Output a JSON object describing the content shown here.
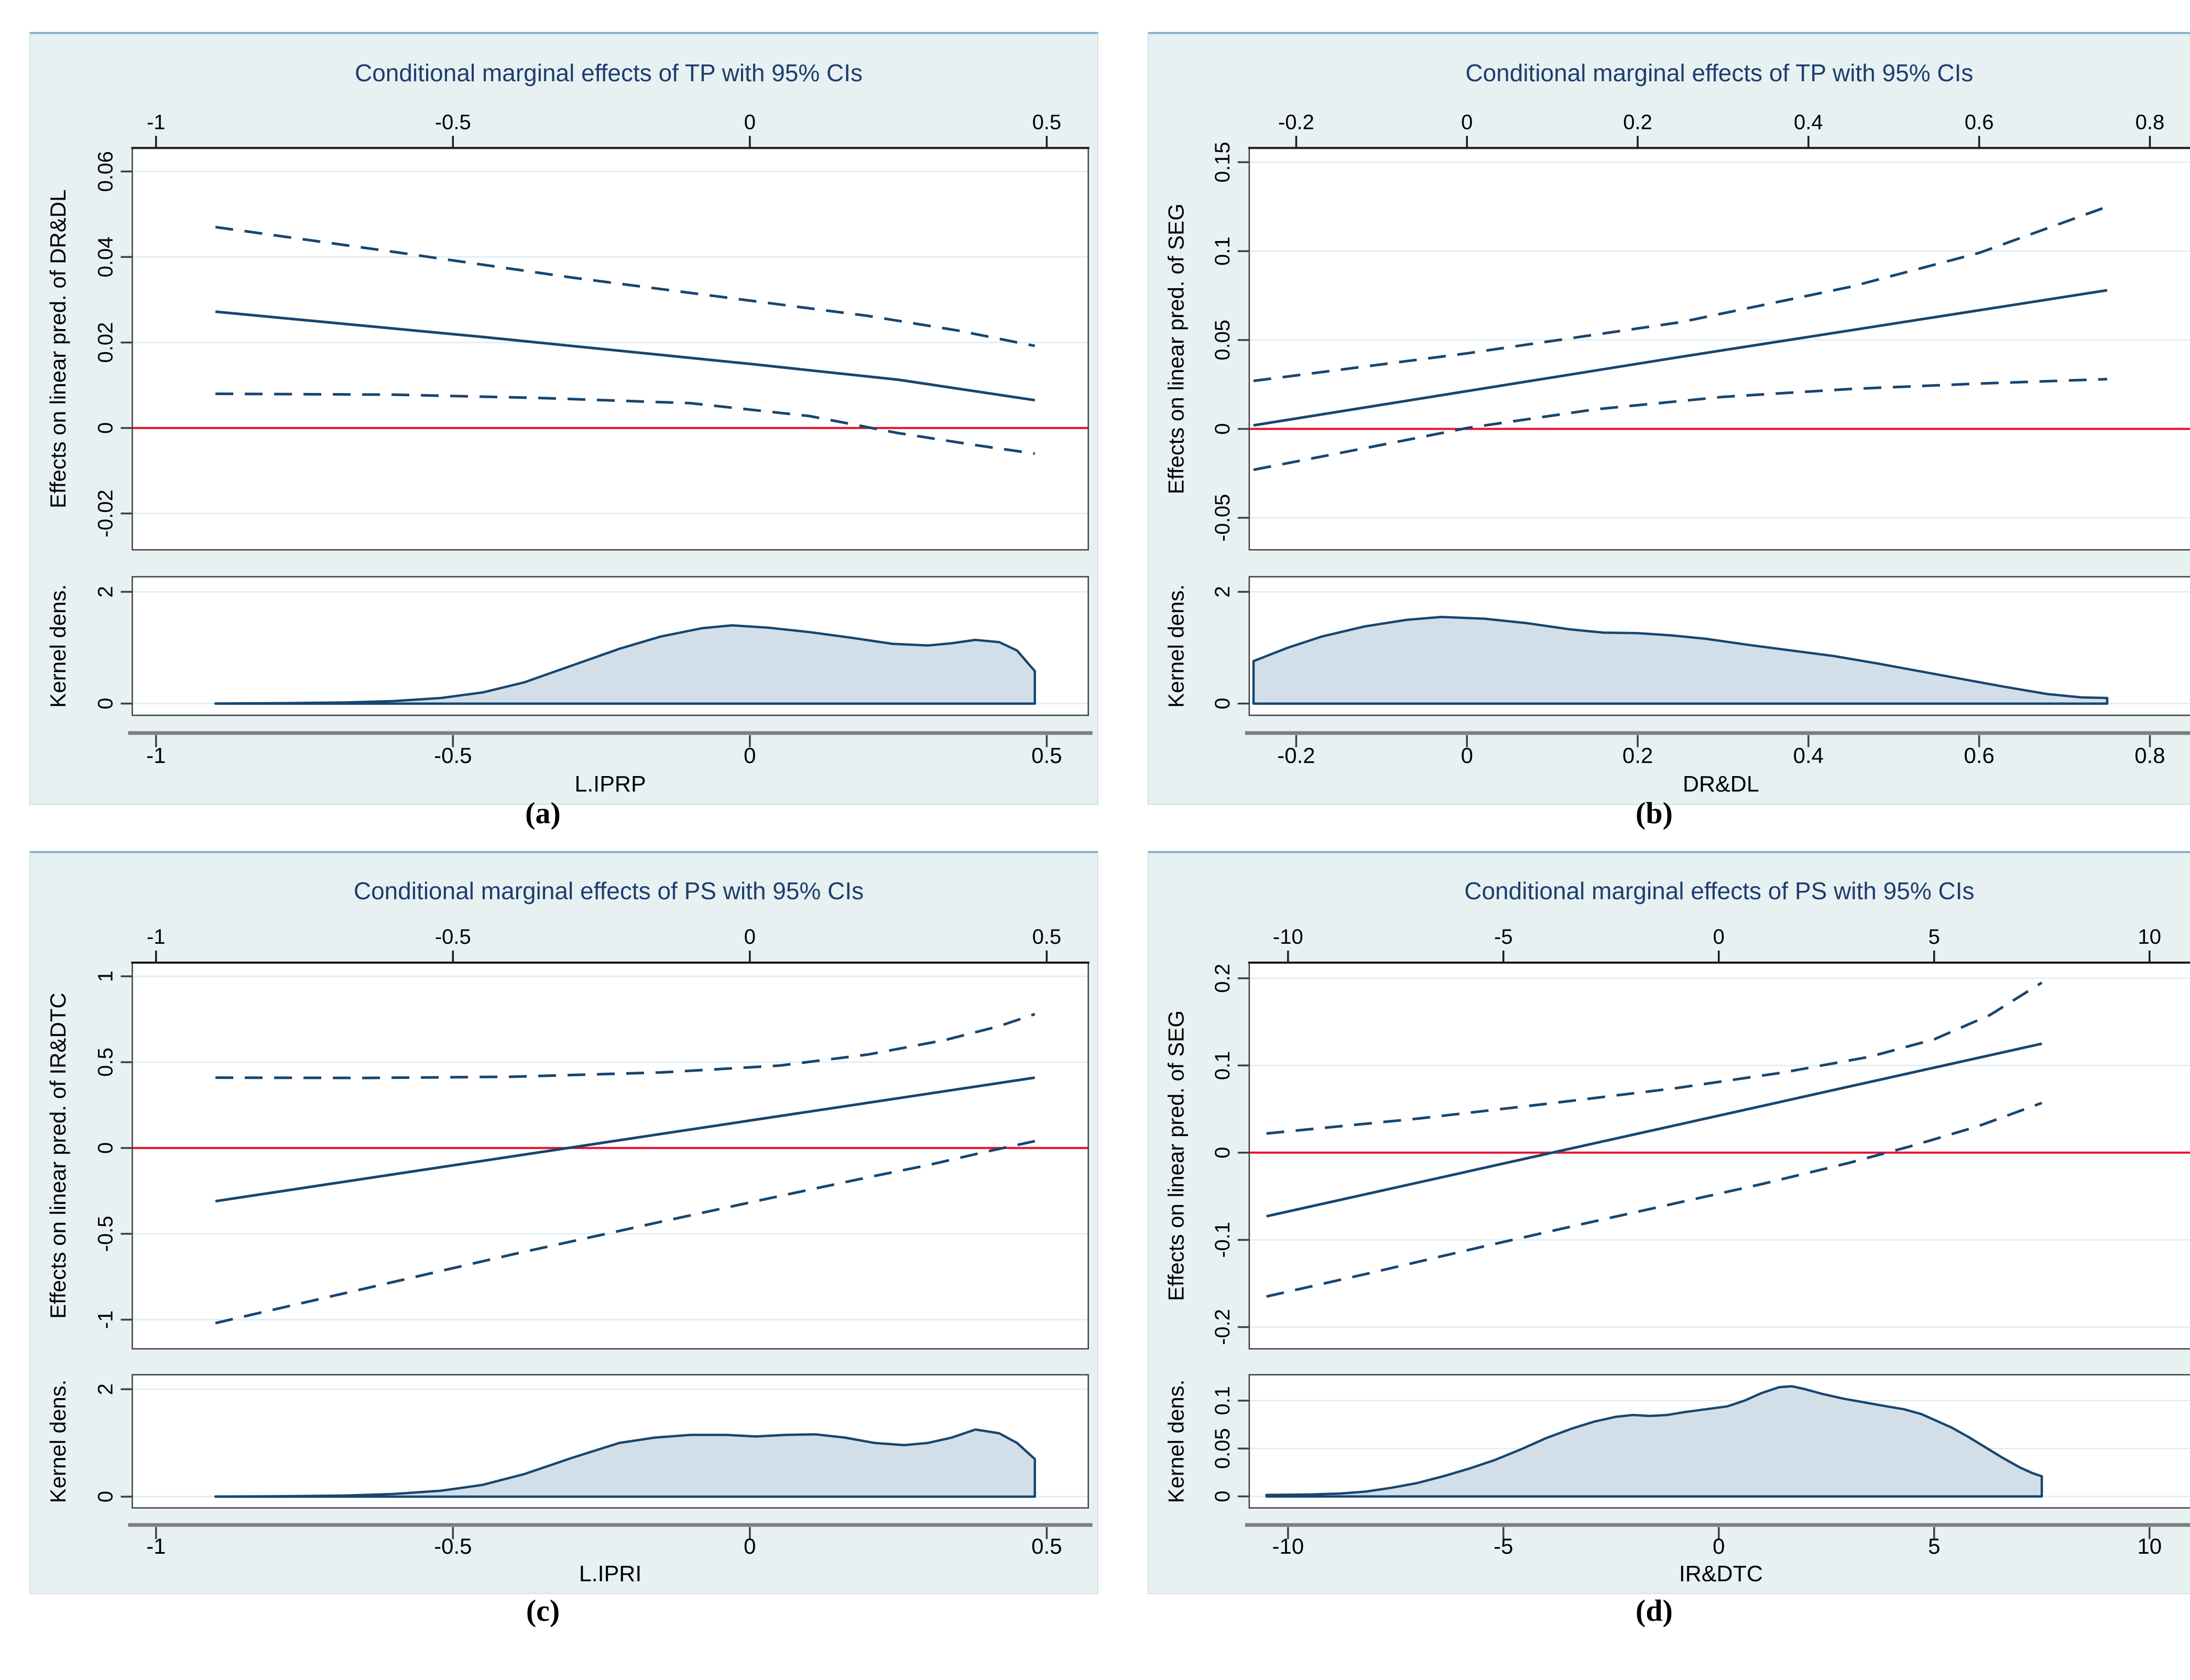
{
  "colors": {
    "panel_bg": "#e7f1f2",
    "panel_border": "#85b3cd",
    "plot_bg": "#ffffff",
    "grid": "#ddedf1",
    "axis": "#3f3f3f",
    "top_axis": "#1a1a1a",
    "scale_line": "#7e7e7e",
    "title_text": "#1e3d6e",
    "line": "#17466f",
    "zero_line": "#e8112d",
    "density_fill": "#d2dfe9",
    "density_stroke": "#17466f",
    "text": "#000000"
  },
  "chart_data": [
    {
      "id": "a",
      "type": "line",
      "label": "(a)",
      "title": "Conditional marginal effects of TP with 95% CIs",
      "xlabel": "L.IPRP",
      "ylabel": "Effects on linear pred. of DR&DL",
      "legend_position": "none",
      "grid": true,
      "xlim": [
        -1.04,
        0.57
      ],
      "xticks": [
        -1,
        -0.5,
        0,
        0.5
      ],
      "xtick_labels": [
        "-1",
        "-0.5",
        "0",
        "0.5"
      ],
      "ylim": [
        -0.0285,
        0.0655
      ],
      "yticks": [
        -0.02,
        0,
        0.02,
        0.04,
        0.06
      ],
      "ytick_labels": [
        "-0.02",
        "0",
        "0.02",
        "0.04",
        "0.06"
      ],
      "zero_line": 0,
      "series": [
        {
          "name": "ci-upper",
          "style": "dashed",
          "points": [
            [
              -0.9,
              0.047
            ],
            [
              -0.6,
              0.0412
            ],
            [
              -0.3,
              0.0352
            ],
            [
              0,
              0.0298
            ],
            [
              0.2,
              0.0262
            ],
            [
              0.35,
              0.0228
            ],
            [
              0.48,
              0.0192
            ]
          ]
        },
        {
          "name": "ci-lower",
          "style": "dashed",
          "points": [
            [
              -0.9,
              0.008
            ],
            [
              -0.6,
              0.0078
            ],
            [
              -0.35,
              0.007
            ],
            [
              -0.1,
              0.0058
            ],
            [
              0.1,
              0.0028
            ],
            [
              0.25,
              -0.0012
            ],
            [
              0.38,
              -0.004
            ],
            [
              0.48,
              -0.006
            ]
          ]
        },
        {
          "name": "marginal-effect",
          "style": "solid",
          "points": [
            [
              -0.9,
              0.0272
            ],
            [
              -0.45,
              0.0213
            ],
            [
              0,
              0.015
            ],
            [
              0.25,
              0.0113
            ],
            [
              0.48,
              0.0065
            ]
          ]
        }
      ],
      "density": {
        "ylabel": "Kernel dens.",
        "ylim": [
          -0.21,
          2.27
        ],
        "yticks": [
          0,
          2
        ],
        "ytick_labels": [
          "0",
          "2"
        ],
        "points": [
          [
            -0.9,
            0.002
          ],
          [
            -0.78,
            0.008
          ],
          [
            -0.68,
            0.02
          ],
          [
            -0.6,
            0.045
          ],
          [
            -0.52,
            0.1
          ],
          [
            -0.45,
            0.2
          ],
          [
            -0.38,
            0.38
          ],
          [
            -0.3,
            0.68
          ],
          [
            -0.22,
            0.98
          ],
          [
            -0.15,
            1.2
          ],
          [
            -0.08,
            1.35
          ],
          [
            -0.03,
            1.4
          ],
          [
            0.03,
            1.36
          ],
          [
            0.1,
            1.28
          ],
          [
            0.17,
            1.18
          ],
          [
            0.24,
            1.07
          ],
          [
            0.3,
            1.04
          ],
          [
            0.34,
            1.08
          ],
          [
            0.38,
            1.14
          ],
          [
            0.42,
            1.1
          ],
          [
            0.45,
            0.95
          ],
          [
            0.48,
            0.58
          ]
        ]
      }
    },
    {
      "id": "b",
      "type": "line",
      "label": "(b)",
      "title": "Conditional marginal effects of TP with 95% CIs",
      "xlabel": "DR&DL",
      "ylabel": "Effects on linear pred. of SEG",
      "legend_position": "none",
      "grid": true,
      "xlim": [
        -0.255,
        0.85
      ],
      "xticks": [
        -0.2,
        0,
        0.2,
        0.4,
        0.6,
        0.8
      ],
      "xtick_labels": [
        "-0.2",
        "0",
        "0.2",
        "0.4",
        "0.6",
        "0.8"
      ],
      "ylim": [
        -0.068,
        0.158
      ],
      "yticks": [
        -0.05,
        0,
        0.05,
        0.1,
        0.15
      ],
      "ytick_labels": [
        "-0.05",
        "0",
        "0.05",
        "0.1",
        "0.15"
      ],
      "zero_line": 0,
      "series": [
        {
          "name": "ci-upper",
          "style": "dashed",
          "points": [
            [
              -0.25,
              0.027
            ],
            [
              0,
              0.0425
            ],
            [
              0.25,
              0.06
            ],
            [
              0.45,
              0.08
            ],
            [
              0.6,
              0.099
            ],
            [
              0.75,
              0.125
            ]
          ]
        },
        {
          "name": "ci-lower",
          "style": "dashed",
          "points": [
            [
              -0.25,
              -0.023
            ],
            [
              -0.1,
              -0.009
            ],
            [
              0,
              0.0005
            ],
            [
              0.15,
              0.011
            ],
            [
              0.3,
              0.018
            ],
            [
              0.45,
              0.0225
            ],
            [
              0.6,
              0.0255
            ],
            [
              0.75,
              0.028
            ]
          ]
        },
        {
          "name": "marginal-effect",
          "style": "solid",
          "points": [
            [
              -0.25,
              0.002
            ],
            [
              0.25,
              0.0405
            ],
            [
              0.75,
              0.078
            ]
          ]
        }
      ],
      "density": {
        "ylabel": "Kernel dens.",
        "ylim": [
          -0.21,
          2.27
        ],
        "yticks": [
          0,
          2
        ],
        "ytick_labels": [
          "0",
          "2"
        ],
        "points": [
          [
            -0.25,
            0.76
          ],
          [
            -0.21,
            1.0
          ],
          [
            -0.17,
            1.2
          ],
          [
            -0.12,
            1.38
          ],
          [
            -0.07,
            1.5
          ],
          [
            -0.03,
            1.55
          ],
          [
            0.02,
            1.52
          ],
          [
            0.07,
            1.44
          ],
          [
            0.12,
            1.33
          ],
          [
            0.16,
            1.27
          ],
          [
            0.2,
            1.26
          ],
          [
            0.24,
            1.22
          ],
          [
            0.28,
            1.16
          ],
          [
            0.33,
            1.05
          ],
          [
            0.38,
            0.95
          ],
          [
            0.43,
            0.85
          ],
          [
            0.48,
            0.72
          ],
          [
            0.53,
            0.58
          ],
          [
            0.58,
            0.44
          ],
          [
            0.63,
            0.3
          ],
          [
            0.68,
            0.17
          ],
          [
            0.72,
            0.11
          ],
          [
            0.75,
            0.1
          ]
        ]
      }
    },
    {
      "id": "c",
      "type": "line",
      "label": "(c)",
      "title": "Conditional marginal effects of PS with 95% CIs",
      "xlabel": "L.IPRI",
      "ylabel": "Effects on linear pred. of IR&DTC",
      "legend_position": "none",
      "grid": true,
      "xlim": [
        -1.04,
        0.57
      ],
      "xticks": [
        -1,
        -0.5,
        0,
        0.5
      ],
      "xtick_labels": [
        "-1",
        "-0.5",
        "0",
        "0.5"
      ],
      "ylim": [
        -1.17,
        1.08
      ],
      "yticks": [
        -1,
        -0.5,
        0,
        0.5,
        1
      ],
      "ytick_labels": [
        "-1",
        "-0.5",
        "0",
        "0.5",
        "1"
      ],
      "zero_line": 0,
      "series": [
        {
          "name": "ci-upper",
          "style": "dashed",
          "points": [
            [
              -0.9,
              0.41
            ],
            [
              -0.65,
              0.408
            ],
            [
              -0.4,
              0.415
            ],
            [
              -0.15,
              0.44
            ],
            [
              0.05,
              0.48
            ],
            [
              0.2,
              0.545
            ],
            [
              0.33,
              0.63
            ],
            [
              0.42,
              0.71
            ],
            [
              0.48,
              0.78
            ]
          ]
        },
        {
          "name": "ci-lower",
          "style": "dashed",
          "points": [
            [
              -0.9,
              -1.02
            ],
            [
              -0.65,
              -0.82
            ],
            [
              -0.4,
              -0.62
            ],
            [
              -0.15,
              -0.43
            ],
            [
              0.05,
              -0.28
            ],
            [
              0.2,
              -0.17
            ],
            [
              0.3,
              -0.1
            ],
            [
              0.4,
              -0.02
            ],
            [
              0.48,
              0.04
            ]
          ]
        },
        {
          "name": "marginal-effect",
          "style": "solid",
          "points": [
            [
              -0.9,
              -0.31
            ],
            [
              -0.45,
              -0.075
            ],
            [
              0,
              0.16
            ],
            [
              0.48,
              0.41
            ]
          ]
        }
      ],
      "density": {
        "ylabel": "Kernel dens.",
        "ylim": [
          -0.21,
          2.27
        ],
        "yticks": [
          0,
          2
        ],
        "ytick_labels": [
          "0",
          "2"
        ],
        "points": [
          [
            -0.9,
            0.002
          ],
          [
            -0.78,
            0.008
          ],
          [
            -0.68,
            0.02
          ],
          [
            -0.6,
            0.05
          ],
          [
            -0.52,
            0.11
          ],
          [
            -0.45,
            0.22
          ],
          [
            -0.38,
            0.42
          ],
          [
            -0.3,
            0.72
          ],
          [
            -0.22,
            1.0
          ],
          [
            -0.16,
            1.1
          ],
          [
            -0.1,
            1.15
          ],
          [
            -0.04,
            1.15
          ],
          [
            0.01,
            1.12
          ],
          [
            0.06,
            1.15
          ],
          [
            0.11,
            1.16
          ],
          [
            0.16,
            1.1
          ],
          [
            0.21,
            1.0
          ],
          [
            0.26,
            0.96
          ],
          [
            0.3,
            1.0
          ],
          [
            0.34,
            1.1
          ],
          [
            0.38,
            1.25
          ],
          [
            0.42,
            1.18
          ],
          [
            0.45,
            1.0
          ],
          [
            0.48,
            0.7
          ]
        ]
      }
    },
    {
      "id": "d",
      "type": "line",
      "label": "(d)",
      "title": "Conditional marginal effects of PS with 95% CIs",
      "xlabel": "IR&DTC",
      "ylabel": "Effects on linear pred. of SEG",
      "legend_position": "none",
      "grid": true,
      "xlim": [
        -10.9,
        11
      ],
      "xticks": [
        -10,
        -5,
        0,
        5,
        10
      ],
      "xtick_labels": [
        "-10",
        "-5",
        "0",
        "5",
        "10"
      ],
      "ylim": [
        -0.225,
        0.218
      ],
      "yticks": [
        -0.2,
        -0.1,
        0,
        0.1,
        0.2
      ],
      "ytick_labels": [
        "-0.2",
        "-0.1",
        "0",
        "0.1",
        "0.2"
      ],
      "zero_line": 0,
      "series": [
        {
          "name": "ci-upper",
          "style": "dashed",
          "points": [
            [
              -10.5,
              0.022
            ],
            [
              -7,
              0.039
            ],
            [
              -4,
              0.056
            ],
            [
              -1,
              0.074
            ],
            [
              1.5,
              0.092
            ],
            [
              3.5,
              0.11
            ],
            [
              5,
              0.13
            ],
            [
              6.3,
              0.158
            ],
            [
              7.5,
              0.195
            ]
          ]
        },
        {
          "name": "ci-lower",
          "style": "dashed",
          "points": [
            [
              -10.5,
              -0.165
            ],
            [
              -8,
              -0.137
            ],
            [
              -5.5,
              -0.108
            ],
            [
              -3,
              -0.08
            ],
            [
              -1,
              -0.058
            ],
            [
              1,
              -0.036
            ],
            [
              3,
              -0.012
            ],
            [
              4.5,
              0.008
            ],
            [
              6,
              0.03
            ],
            [
              7.5,
              0.057
            ]
          ]
        },
        {
          "name": "marginal-effect",
          "style": "solid",
          "points": [
            [
              -10.5,
              -0.073
            ],
            [
              -1.5,
              0.026
            ],
            [
              7.5,
              0.125
            ]
          ]
        }
      ],
      "density": {
        "ylabel": "Kernel dens.",
        "ylim": [
          -0.012,
          0.127
        ],
        "yticks": [
          0,
          0.05,
          0.1
        ],
        "ytick_labels": [
          "0",
          "0.05",
          "0.1"
        ],
        "points": [
          [
            -10.5,
            0.0015
          ],
          [
            -9.5,
            0.002
          ],
          [
            -8.8,
            0.003
          ],
          [
            -8.2,
            0.005
          ],
          [
            -7.6,
            0.009
          ],
          [
            -7,
            0.014
          ],
          [
            -6.4,
            0.021
          ],
          [
            -5.8,
            0.029
          ],
          [
            -5.2,
            0.038
          ],
          [
            -4.6,
            0.049
          ],
          [
            -4,
            0.061
          ],
          [
            -3.4,
            0.071
          ],
          [
            -2.9,
            0.078
          ],
          [
            -2.4,
            0.083
          ],
          [
            -2,
            0.085
          ],
          [
            -1.6,
            0.084
          ],
          [
            -1.2,
            0.085
          ],
          [
            -0.8,
            0.088
          ],
          [
            -0.3,
            0.091
          ],
          [
            0.2,
            0.094
          ],
          [
            0.6,
            0.1
          ],
          [
            1,
            0.108
          ],
          [
            1.4,
            0.114
          ],
          [
            1.7,
            0.115
          ],
          [
            2,
            0.112
          ],
          [
            2.4,
            0.107
          ],
          [
            2.9,
            0.102
          ],
          [
            3.4,
            0.098
          ],
          [
            3.9,
            0.094
          ],
          [
            4.3,
            0.091
          ],
          [
            4.7,
            0.086
          ],
          [
            5,
            0.08
          ],
          [
            5.4,
            0.072
          ],
          [
            5.8,
            0.062
          ],
          [
            6.2,
            0.051
          ],
          [
            6.6,
            0.04
          ],
          [
            7,
            0.03
          ],
          [
            7.3,
            0.024
          ],
          [
            7.5,
            0.021
          ]
        ]
      }
    }
  ]
}
